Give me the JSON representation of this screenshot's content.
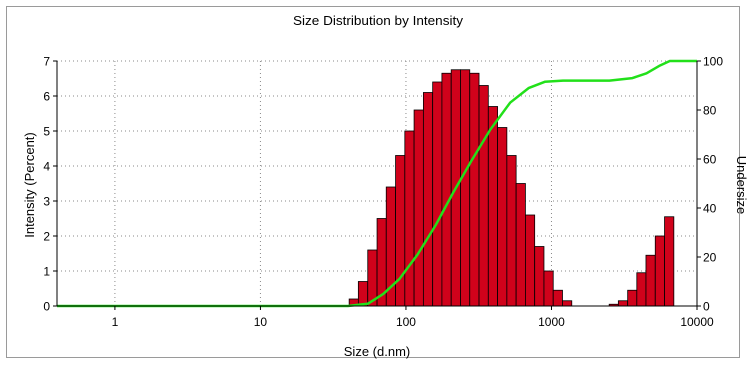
{
  "chart_data": {
    "type": "bar",
    "title": "Size Distribution by Intensity",
    "xlabel": "Size (d.nm)",
    "ylabel": "Intensity (Percent)",
    "y2label": "Undersize",
    "x_scale": "log",
    "xlim": [
      0.4,
      10000
    ],
    "ylim": [
      0,
      7
    ],
    "y2lim": [
      0,
      100
    ],
    "x_ticks": [
      1,
      10,
      100,
      1000,
      10000
    ],
    "y_ticks": [
      0,
      1,
      2,
      3,
      4,
      5,
      6,
      7
    ],
    "y2_ticks": [
      0,
      20,
      40,
      60,
      80,
      100
    ],
    "grid": true,
    "colors": {
      "bars": "#d0021b",
      "bar_edge": "#000000",
      "curve": "#22e01a",
      "grid": "#8a8a8a"
    },
    "series": [
      {
        "type": "bar",
        "axis": "left",
        "values": [
          {
            "x": 43.8,
            "y": 0.2
          },
          {
            "x": 50.7,
            "y": 0.7
          },
          {
            "x": 58.8,
            "y": 1.6
          },
          {
            "x": 68.1,
            "y": 2.5
          },
          {
            "x": 78.8,
            "y": 3.4
          },
          {
            "x": 91.3,
            "y": 4.3
          },
          {
            "x": 105.7,
            "y": 5.0
          },
          {
            "x": 122.4,
            "y": 5.6
          },
          {
            "x": 141.8,
            "y": 6.1
          },
          {
            "x": 164.2,
            "y": 6.4
          },
          {
            "x": 190.1,
            "y": 6.65
          },
          {
            "x": 220.2,
            "y": 6.75
          },
          {
            "x": 255.0,
            "y": 6.75
          },
          {
            "x": 295.3,
            "y": 6.65
          },
          {
            "x": 342.0,
            "y": 6.3
          },
          {
            "x": 396.1,
            "y": 5.7
          },
          {
            "x": 458.7,
            "y": 5.1
          },
          {
            "x": 531.2,
            "y": 4.3
          },
          {
            "x": 615.1,
            "y": 3.5
          },
          {
            "x": 712.4,
            "y": 2.6
          },
          {
            "x": 825.0,
            "y": 1.7
          },
          {
            "x": 955.4,
            "y": 1.0
          },
          {
            "x": 1106.0,
            "y": 0.45
          },
          {
            "x": 1281.0,
            "y": 0.15
          },
          {
            "x": 2680.0,
            "y": 0.05
          },
          {
            "x": 3100.0,
            "y": 0.15
          },
          {
            "x": 3590.0,
            "y": 0.45
          },
          {
            "x": 4150.0,
            "y": 0.95
          },
          {
            "x": 4800.0,
            "y": 1.45
          },
          {
            "x": 5560.0,
            "y": 2.0
          },
          {
            "x": 6440.0,
            "y": 2.55
          }
        ]
      },
      {
        "type": "line",
        "axis": "right",
        "values": [
          {
            "x": 0.4,
            "y": 0
          },
          {
            "x": 40,
            "y": 0
          },
          {
            "x": 55,
            "y": 1
          },
          {
            "x": 70,
            "y": 5
          },
          {
            "x": 90,
            "y": 11
          },
          {
            "x": 120,
            "y": 21
          },
          {
            "x": 160,
            "y": 33
          },
          {
            "x": 210,
            "y": 46
          },
          {
            "x": 280,
            "y": 59
          },
          {
            "x": 380,
            "y": 72
          },
          {
            "x": 520,
            "y": 83
          },
          {
            "x": 700,
            "y": 89
          },
          {
            "x": 900,
            "y": 91.5
          },
          {
            "x": 1200,
            "y": 92
          },
          {
            "x": 2500,
            "y": 92
          },
          {
            "x": 3600,
            "y": 93
          },
          {
            "x": 4500,
            "y": 95
          },
          {
            "x": 5500,
            "y": 98
          },
          {
            "x": 6500,
            "y": 100
          },
          {
            "x": 10000,
            "y": 100
          }
        ]
      }
    ]
  }
}
